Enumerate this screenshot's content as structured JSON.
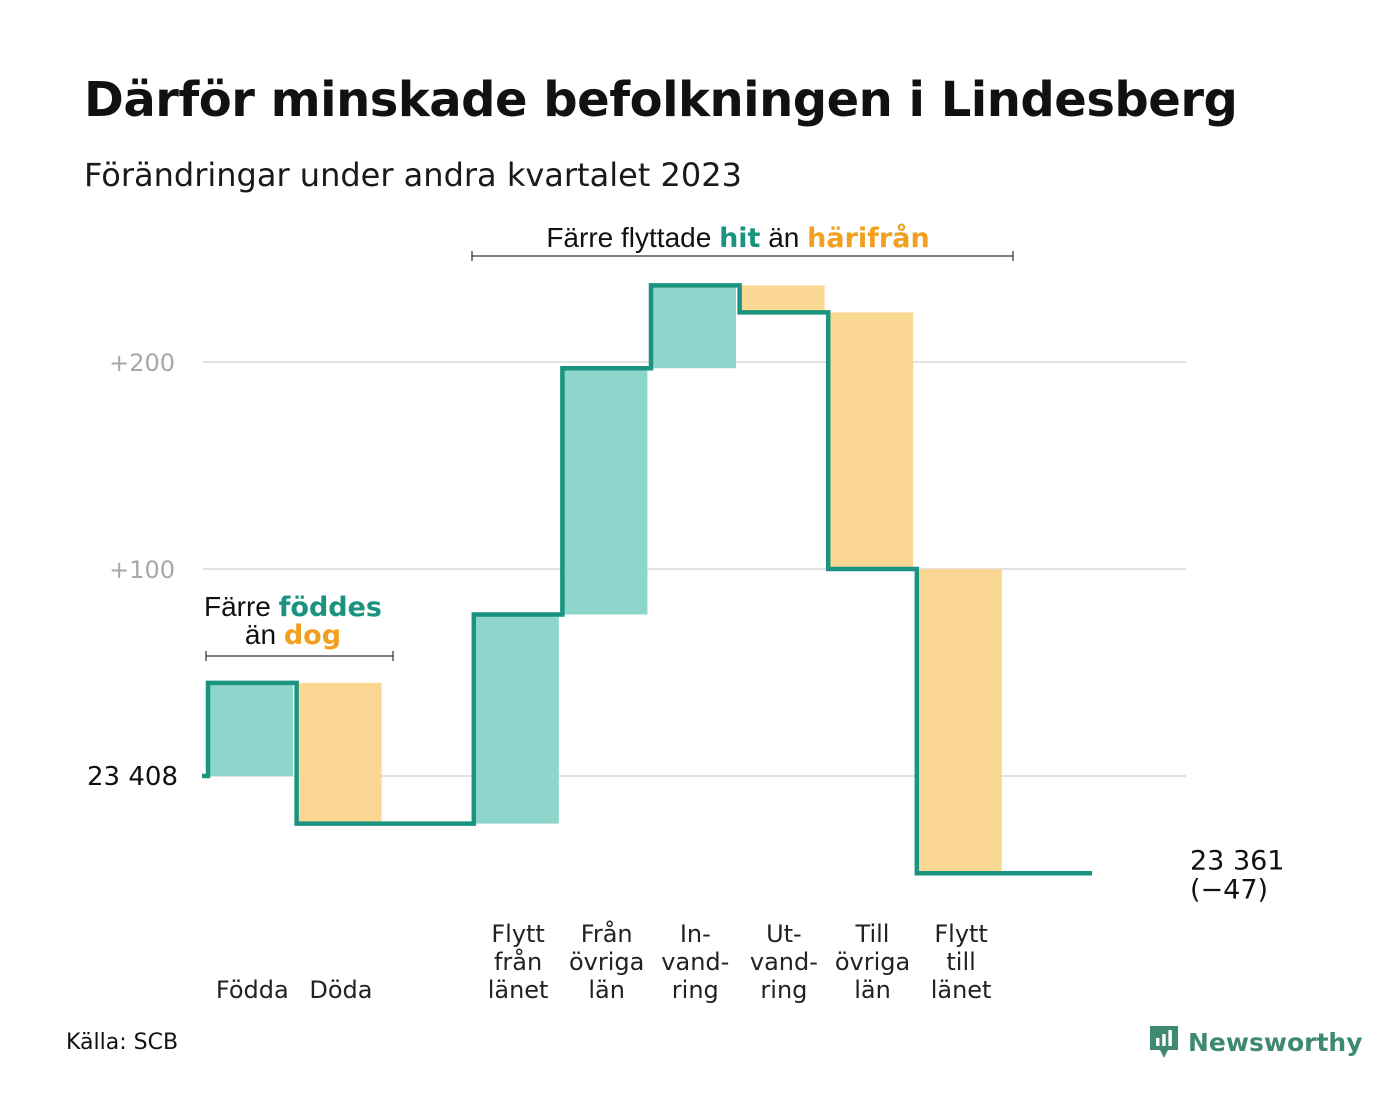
{
  "title": "Därför minskade befolkningen i Lindesberg",
  "subtitle": "Förändringar under andra kvartalet 2023",
  "source": "Källa: SCB",
  "brand": {
    "name": "Newsworthy",
    "icon": "newsworthy-logo-icon"
  },
  "colors": {
    "increase": "#8ed6cc",
    "decrease": "#fad792",
    "line": "#1a9480",
    "increase_text": "#1a9480",
    "decrease_text": "#f0a01e",
    "grid": "#e3e3e3",
    "tick": "#a8a8a8"
  },
  "annotations": {
    "births": {
      "prefix": "Färre",
      "positive": "föddes",
      "connector": "än",
      "negative": "dog"
    },
    "moves": {
      "prefix": "Färre flyttade",
      "positive": "hit",
      "connector": "än",
      "negative": "härifrån"
    }
  },
  "chart_data": {
    "type": "waterfall",
    "title": "Därför minskade befolkningen i Lindesberg",
    "subtitle": "Förändringar under andra kvartalet 2023",
    "start": {
      "value": 23408,
      "label": "23 408"
    },
    "end": {
      "value": 23361,
      "label": "23 361",
      "change_label": "(−47)"
    },
    "y_ticks": [
      {
        "value": 100,
        "label": "+100"
      },
      {
        "value": 200,
        "label": "+200"
      }
    ],
    "steps": [
      {
        "category": [
          "Födda"
        ],
        "change": 45,
        "direction": "increase"
      },
      {
        "category": [
          "Döda"
        ],
        "change": -68,
        "direction": "decrease"
      },
      {
        "category": [
          ""
        ],
        "change": 0,
        "direction": "none"
      },
      {
        "category": [
          "Flytt",
          "från",
          "länet"
        ],
        "change": 101,
        "direction": "increase"
      },
      {
        "category": [
          "Från",
          "övriga",
          "län"
        ],
        "change": 119,
        "direction": "increase"
      },
      {
        "category": [
          "In-",
          "vand-",
          "ring"
        ],
        "change": 40,
        "direction": "increase"
      },
      {
        "category": [
          "Ut-",
          "vand-",
          "ring"
        ],
        "change": -13,
        "direction": "decrease"
      },
      {
        "category": [
          "Till",
          "övriga",
          "län"
        ],
        "change": -124,
        "direction": "decrease"
      },
      {
        "category": [
          "Flytt",
          "till",
          "länet"
        ],
        "change": -147,
        "direction": "decrease"
      },
      {
        "category": [
          ""
        ],
        "change": 0,
        "direction": "none"
      }
    ],
    "grid": true
  }
}
